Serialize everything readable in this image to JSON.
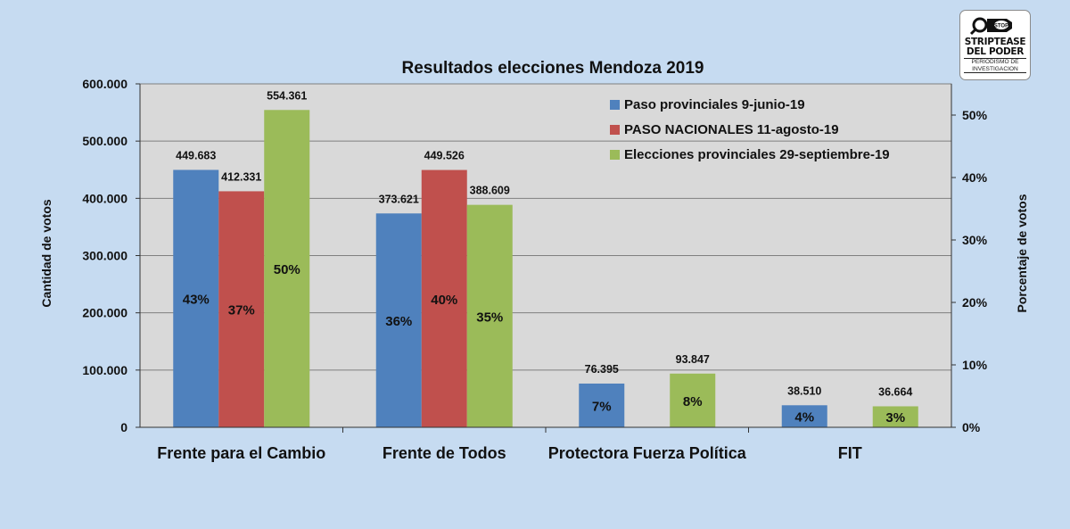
{
  "logo": {
    "badge": "STOP",
    "line1": "STRIPTEASE",
    "line2": "DEL PODER",
    "line3": "PERIODISMO DE",
    "line4": "INVESTIGACION"
  },
  "chart_data": {
    "type": "bar",
    "title": "Resultados elecciones Mendoza 2019",
    "ylabel": "Cantidad de votos",
    "y2label": "Porcentaje de votos",
    "ylim": [
      0,
      600000
    ],
    "y2lim": [
      0,
      0.55
    ],
    "yticks": [
      "0",
      "100.000",
      "200.000",
      "300.000",
      "400.000",
      "500.000",
      "600.000"
    ],
    "y2ticks": [
      "0%",
      "10%",
      "20%",
      "30%",
      "40%",
      "50%"
    ],
    "grid": true,
    "legend_position": "top-right",
    "categories": [
      "Frente para el Cambio",
      "Frente de Todos",
      "Protectora Fuerza Política",
      "FIT"
    ],
    "series": [
      {
        "name": "Paso provinciales 9-junio-19",
        "color": "#4f81bd",
        "values": [
          449683,
          373621,
          76395,
          38510
        ],
        "value_labels": [
          "449.683",
          "373.621",
          "76.395",
          "38.510"
        ],
        "pct_labels": [
          "43%",
          "36%",
          "7%",
          "4%"
        ]
      },
      {
        "name": "PASO NACIONALES 11-agosto-19",
        "color": "#c0504d",
        "values": [
          412331,
          449526,
          null,
          null
        ],
        "value_labels": [
          "412.331",
          "449.526",
          "",
          ""
        ],
        "pct_labels": [
          "37%",
          "40%",
          "",
          ""
        ]
      },
      {
        "name": "Elecciones provinciales 29-septiembre-19",
        "color": "#9bbb59",
        "values": [
          554361,
          388609,
          93847,
          36664
        ],
        "value_labels": [
          "554.361",
          "388.609",
          "93.847",
          "36.664"
        ],
        "pct_labels": [
          "50%",
          "35%",
          "8%",
          "3%"
        ]
      }
    ]
  }
}
